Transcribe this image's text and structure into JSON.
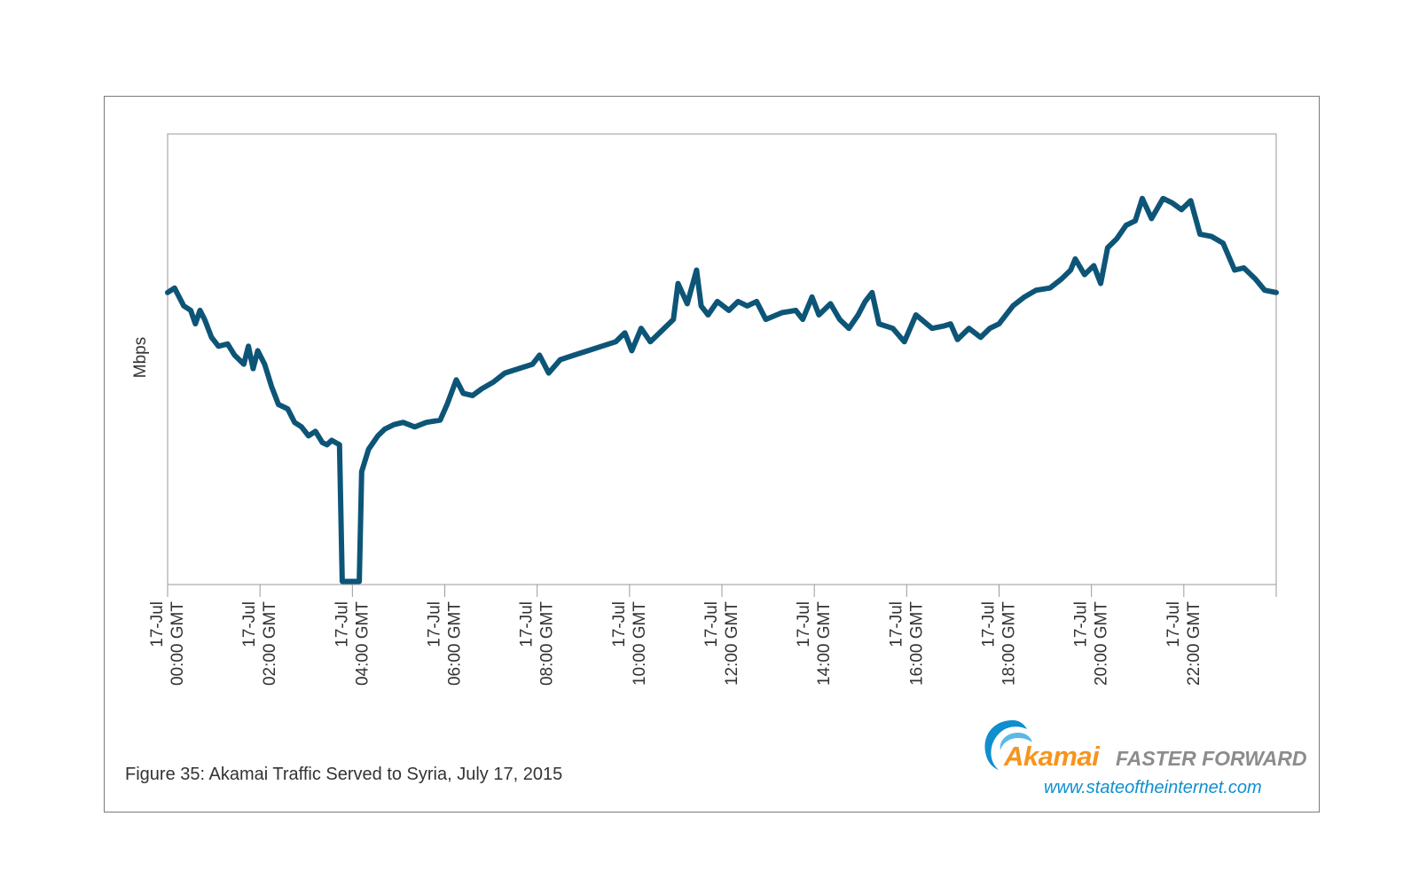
{
  "chart_data": {
    "type": "line",
    "title": "Figure 35: Akamai Traffic Served to Syria, July 17, 2015",
    "xlabel": "",
    "ylabel": "Mbps",
    "xlim": [
      0,
      24
    ],
    "ylim": [
      0,
      100
    ],
    "grid": false,
    "x_ticks": [
      0,
      2,
      4,
      6,
      8,
      10,
      12,
      14,
      16,
      18,
      20,
      22
    ],
    "x_tick_labels": [
      {
        "line1": "17-Jul",
        "line2": "00:00 GMT"
      },
      {
        "line1": "17-Jul",
        "line2": "02:00 GMT"
      },
      {
        "line1": "17-Jul",
        "line2": "04:00 GMT"
      },
      {
        "line1": "17-Jul",
        "line2": "06:00 GMT"
      },
      {
        "line1": "17-Jul",
        "line2": "08:00 GMT"
      },
      {
        "line1": "17-Jul",
        "line2": "10:00 GMT"
      },
      {
        "line1": "17-Jul",
        "line2": "12:00 GMT"
      },
      {
        "line1": "17-Jul",
        "line2": "14:00 GMT"
      },
      {
        "line1": "17-Jul",
        "line2": "16:00 GMT"
      },
      {
        "line1": "17-Jul",
        "line2": "18:00 GMT"
      },
      {
        "line1": "17-Jul",
        "line2": "20:00 GMT"
      },
      {
        "line1": "17-Jul",
        "line2": "22:00 GMT"
      }
    ],
    "series": [
      {
        "name": "Mbps",
        "color": "#0d5577",
        "points": [
          [
            0.0,
            65
          ],
          [
            0.15,
            66
          ],
          [
            0.35,
            62
          ],
          [
            0.5,
            61
          ],
          [
            0.6,
            58
          ],
          [
            0.7,
            61
          ],
          [
            0.8,
            59
          ],
          [
            0.95,
            55
          ],
          [
            1.1,
            53
          ],
          [
            1.3,
            53.5
          ],
          [
            1.45,
            51
          ],
          [
            1.55,
            50
          ],
          [
            1.65,
            49
          ],
          [
            1.75,
            53
          ],
          [
            1.85,
            48
          ],
          [
            1.95,
            52
          ],
          [
            2.1,
            49
          ],
          [
            2.25,
            44
          ],
          [
            2.4,
            40
          ],
          [
            2.6,
            39
          ],
          [
            2.75,
            36
          ],
          [
            2.9,
            35
          ],
          [
            3.05,
            33
          ],
          [
            3.2,
            34
          ],
          [
            3.35,
            31.5
          ],
          [
            3.45,
            31
          ],
          [
            3.55,
            32
          ],
          [
            3.72,
            31
          ],
          [
            3.78,
            0.5
          ],
          [
            4.15,
            0.5
          ],
          [
            4.2,
            25
          ],
          [
            4.35,
            30
          ],
          [
            4.55,
            33
          ],
          [
            4.7,
            34.5
          ],
          [
            4.9,
            35.5
          ],
          [
            5.1,
            36
          ],
          [
            5.35,
            35
          ],
          [
            5.6,
            36
          ],
          [
            5.9,
            36.5
          ],
          [
            6.05,
            40
          ],
          [
            6.25,
            45.5
          ],
          [
            6.4,
            42.5
          ],
          [
            6.6,
            42
          ],
          [
            6.8,
            43.5
          ],
          [
            7.05,
            45
          ],
          [
            7.3,
            47
          ],
          [
            7.6,
            48
          ],
          [
            7.9,
            49
          ],
          [
            8.05,
            51
          ],
          [
            8.25,
            47
          ],
          [
            8.5,
            50
          ],
          [
            8.8,
            51
          ],
          [
            9.1,
            52
          ],
          [
            9.4,
            53
          ],
          [
            9.7,
            54
          ],
          [
            9.9,
            56
          ],
          [
            10.05,
            52
          ],
          [
            10.25,
            57
          ],
          [
            10.45,
            54
          ],
          [
            10.75,
            57
          ],
          [
            10.95,
            59
          ],
          [
            11.05,
            67
          ],
          [
            11.25,
            62.5
          ],
          [
            11.45,
            70
          ],
          [
            11.55,
            62
          ],
          [
            11.7,
            60
          ],
          [
            11.9,
            63
          ],
          [
            12.15,
            61
          ],
          [
            12.35,
            63
          ],
          [
            12.55,
            62
          ],
          [
            12.75,
            63
          ],
          [
            12.95,
            59
          ],
          [
            13.3,
            60.5
          ],
          [
            13.6,
            61
          ],
          [
            13.75,
            59
          ],
          [
            13.95,
            64
          ],
          [
            14.1,
            60
          ],
          [
            14.35,
            62.5
          ],
          [
            14.55,
            59
          ],
          [
            14.75,
            57
          ],
          [
            14.95,
            60
          ],
          [
            15.1,
            63
          ],
          [
            15.25,
            65
          ],
          [
            15.4,
            58
          ],
          [
            15.7,
            57
          ],
          [
            15.95,
            54
          ],
          [
            16.2,
            60
          ],
          [
            16.55,
            57
          ],
          [
            16.8,
            57.5
          ],
          [
            16.95,
            58
          ],
          [
            17.1,
            54.5
          ],
          [
            17.35,
            57
          ],
          [
            17.6,
            55
          ],
          [
            17.8,
            57
          ],
          [
            18.0,
            58
          ],
          [
            18.3,
            62
          ],
          [
            18.55,
            64
          ],
          [
            18.8,
            65.5
          ],
          [
            19.1,
            66
          ],
          [
            19.35,
            68
          ],
          [
            19.55,
            70
          ],
          [
            19.65,
            72.5
          ],
          [
            19.85,
            69
          ],
          [
            20.05,
            71
          ],
          [
            20.2,
            67
          ],
          [
            20.35,
            75
          ],
          [
            20.55,
            77
          ],
          [
            20.75,
            80
          ],
          [
            20.95,
            81
          ],
          [
            21.1,
            86
          ],
          [
            21.3,
            81.5
          ],
          [
            21.55,
            86
          ],
          [
            21.75,
            85
          ],
          [
            21.95,
            83.5
          ],
          [
            22.15,
            85.5
          ],
          [
            22.35,
            78
          ],
          [
            22.6,
            77.5
          ],
          [
            22.85,
            76
          ],
          [
            23.1,
            70
          ],
          [
            23.3,
            70.5
          ],
          [
            23.55,
            68
          ],
          [
            23.75,
            65.5
          ],
          [
            24.0,
            65
          ]
        ]
      }
    ]
  },
  "caption": {
    "text": "Figure 35: Akamai Traffic Served to Syria, July 17, 2015"
  },
  "logo": {
    "brand": "Akamai",
    "tagline": "FASTER FORWARD",
    "url": "www.stateoftheinternet.com",
    "brand_color": "#f7941d",
    "swoosh_color": "#0f8fce",
    "tagline_color": "#8c8c8c"
  }
}
